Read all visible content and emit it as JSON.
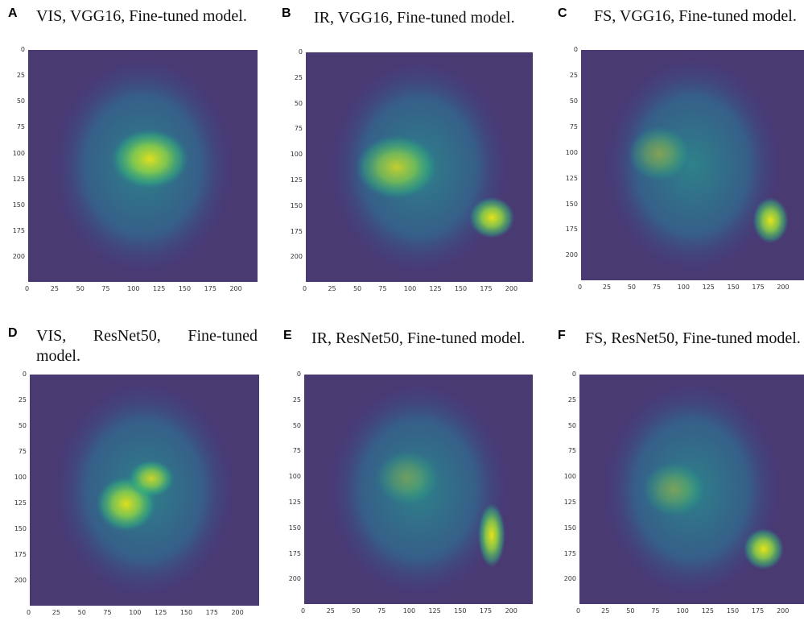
{
  "panels": [
    {
      "letter": "A",
      "caption": "VIS, VGG16, Fine-tuned model.",
      "yticks": [
        "0",
        "25",
        "50",
        "75",
        "100",
        "125",
        "150",
        "175",
        "200"
      ],
      "xticks": [
        "0",
        "25",
        "50",
        "75",
        "100",
        "125",
        "150",
        "175",
        "200"
      ]
    },
    {
      "letter": "B",
      "caption": "IR, VGG16, Fine-tuned model.",
      "yticks": [
        "0",
        "25",
        "50",
        "75",
        "100",
        "125",
        "150",
        "175",
        "200"
      ],
      "xticks": [
        "0",
        "25",
        "50",
        "75",
        "100",
        "125",
        "150",
        "175",
        "200"
      ]
    },
    {
      "letter": "C",
      "caption": "FS, VGG16, Fine-tuned model.",
      "yticks": [
        "0",
        "25",
        "50",
        "75",
        "100",
        "125",
        "150",
        "175",
        "200"
      ],
      "xticks": [
        "0",
        "25",
        "50",
        "75",
        "100",
        "125",
        "150",
        "175",
        "200"
      ]
    },
    {
      "letter": "D",
      "caption": "VIS, ResNet50, Fine-tuned model.",
      "yticks": [
        "0",
        "25",
        "50",
        "75",
        "100",
        "125",
        "150",
        "175",
        "200"
      ],
      "xticks": [
        "0",
        "25",
        "50",
        "75",
        "100",
        "125",
        "150",
        "175",
        "200"
      ]
    },
    {
      "letter": "E",
      "caption": "IR, ResNet50, Fine-tuned model.",
      "yticks": [
        "0",
        "25",
        "50",
        "75",
        "100",
        "125",
        "150",
        "175",
        "200"
      ],
      "xticks": [
        "0",
        "25",
        "50",
        "75",
        "100",
        "125",
        "150",
        "175",
        "200"
      ]
    },
    {
      "letter": "F",
      "caption": "FS, ResNet50, Fine-tuned model.",
      "yticks": [
        "0",
        "25",
        "50",
        "75",
        "100",
        "125",
        "150",
        "175",
        "200"
      ],
      "xticks": [
        "0",
        "25",
        "50",
        "75",
        "100",
        "125",
        "150",
        "175",
        "200"
      ]
    }
  ]
}
